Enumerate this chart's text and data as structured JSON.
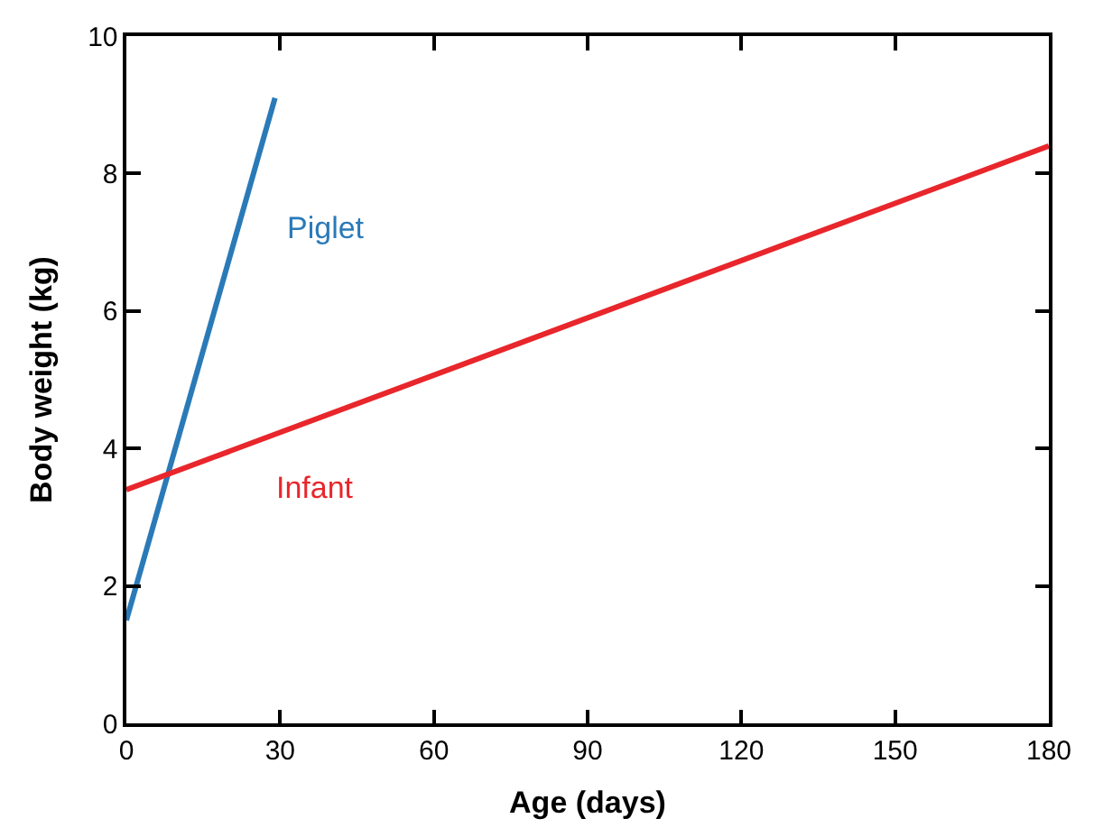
{
  "chart_data": {
    "type": "line",
    "xlabel": "Age (days)",
    "ylabel": "Body weight (kg)",
    "xlim": [
      0,
      180
    ],
    "xticks": [
      0,
      30,
      60,
      90,
      120,
      150,
      180
    ],
    "ylim": [
      0,
      10
    ],
    "yticks": [
      0,
      2,
      4,
      6,
      8,
      10
    ],
    "series": [
      {
        "name": "Piglet",
        "color": "#2a7ab8",
        "x": [
          0,
          29
        ],
        "values": [
          1.5,
          9.1
        ]
      },
      {
        "name": "Infant",
        "color": "#e8262b",
        "x": [
          0,
          180
        ],
        "values": [
          3.4,
          8.4
        ]
      }
    ],
    "legend": false,
    "marker": "none",
    "line_style": "solid"
  }
}
